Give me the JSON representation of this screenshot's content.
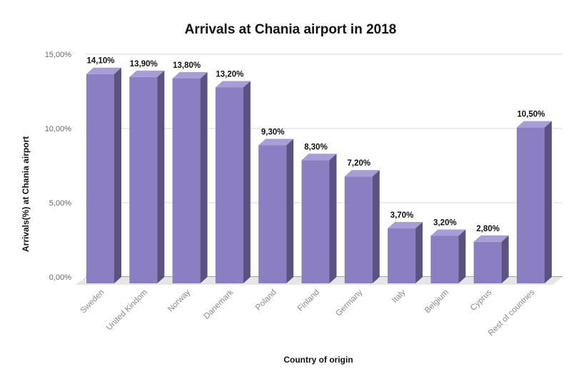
{
  "chart_data": {
    "type": "bar",
    "title": "Arrivals at Chania airport in 2018",
    "xlabel": "Country of origin",
    "ylabel": "Arrivals(%) at Chania airport",
    "categories": [
      "Sweden",
      "United Kindom",
      "Norway",
      "Danemark",
      "Poland",
      "Finland",
      "Germany",
      "Italy",
      "Belgium",
      "Cyprus",
      "Rest of countries"
    ],
    "values": [
      14.1,
      13.9,
      13.8,
      13.2,
      9.3,
      8.3,
      7.2,
      3.7,
      3.2,
      2.8,
      10.5
    ],
    "data_labels": [
      "14,10%",
      "13,90%",
      "13,80%",
      "13,20%",
      "9,30%",
      "8,30%",
      "7,20%",
      "3,70%",
      "3,20%",
      "2,80%",
      "10,50%"
    ],
    "y_ticks": [
      0,
      5,
      10,
      15
    ],
    "y_tick_labels": [
      "0,00%",
      "5,00%",
      "10,00%",
      "15,00%"
    ],
    "ylim": [
      0,
      15
    ],
    "grid": true,
    "bar_color": "#8b7ec3",
    "bar_side_color": "#5d527f",
    "bar_top_color": "#a89dd4"
  }
}
